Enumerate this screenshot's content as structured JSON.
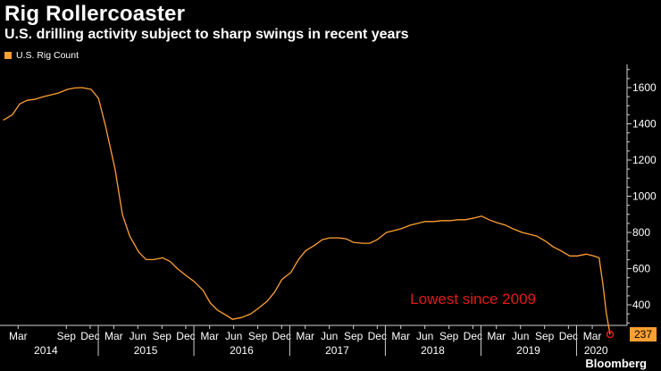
{
  "header": {
    "title": "Rig Rollercoaster",
    "subtitle": "U.S. drilling activity subject to sharp swings in recent years"
  },
  "legend": {
    "label": "U.S. Rig Count",
    "color": "#ffa033"
  },
  "footer": {
    "brand": "Bloomberg"
  },
  "chart_data": {
    "type": "line",
    "title": "Rig Rollercoaster",
    "subtitle": "U.S. drilling activity subject to sharp swings in recent years",
    "xlabel": "",
    "ylabel": "",
    "ylim": [
      200,
      1700
    ],
    "yticks": [
      400,
      600,
      800,
      1000,
      1200,
      1400,
      1600
    ],
    "y_axis_side": "right",
    "grid": "none",
    "legend_position": "top-left",
    "x_tick_labels": [
      "Mar",
      "Sep",
      "Dec",
      "Mar",
      "Jun",
      "Sep",
      "Dec",
      "Mar",
      "Jun",
      "Sep",
      "Dec",
      "Mar",
      "Jun",
      "Sep",
      "Dec",
      "Mar",
      "Jun",
      "Sep",
      "Dec",
      "Mar",
      "Jun",
      "Sep",
      "Dec",
      "Mar"
    ],
    "x_tick_dates": [
      "2014-03-01",
      "2014-09-01",
      "2014-12-01",
      "2015-03-01",
      "2015-06-01",
      "2015-09-01",
      "2015-12-01",
      "2016-03-01",
      "2016-06-01",
      "2016-09-01",
      "2016-12-01",
      "2017-03-01",
      "2017-06-01",
      "2017-09-01",
      "2017-12-01",
      "2018-03-01",
      "2018-06-01",
      "2018-09-01",
      "2018-12-01",
      "2019-03-01",
      "2019-06-01",
      "2019-09-01",
      "2019-12-01",
      "2020-03-01"
    ],
    "year_labels": [
      {
        "label": "2014",
        "date": "2014-06-15"
      },
      {
        "label": "2015",
        "date": "2015-07-01"
      },
      {
        "label": "2016",
        "date": "2016-07-01"
      },
      {
        "label": "2017",
        "date": "2017-07-01"
      },
      {
        "label": "2018",
        "date": "2018-07-01"
      },
      {
        "label": "2019",
        "date": "2019-07-01"
      },
      {
        "label": "2020",
        "date": "2020-03-15"
      }
    ],
    "year_separators": [
      "2015-01-01",
      "2016-01-01",
      "2017-01-01",
      "2018-01-01",
      "2019-01-01",
      "2020-01-01"
    ],
    "x_range": [
      "2014-01-01",
      "2020-05-08"
    ],
    "series": [
      {
        "name": "U.S. Rig Count",
        "color": "#ffa033",
        "x": [
          "2014-01-03",
          "2014-02-07",
          "2014-03-07",
          "2014-04-04",
          "2014-05-02",
          "2014-06-06",
          "2014-07-04",
          "2014-08-01",
          "2014-09-05",
          "2014-10-03",
          "2014-10-31",
          "2014-12-05",
          "2015-01-02",
          "2015-01-30",
          "2015-03-06",
          "2015-04-03",
          "2015-05-01",
          "2015-06-05",
          "2015-07-03",
          "2015-07-31",
          "2015-09-04",
          "2015-10-02",
          "2015-10-30",
          "2015-12-04",
          "2016-01-01",
          "2016-02-05",
          "2016-03-04",
          "2016-04-01",
          "2016-05-06",
          "2016-05-27",
          "2016-07-01",
          "2016-08-05",
          "2016-09-02",
          "2016-10-07",
          "2016-11-04",
          "2016-12-02",
          "2017-01-06",
          "2017-02-03",
          "2017-03-03",
          "2017-04-07",
          "2017-05-05",
          "2017-06-02",
          "2017-07-07",
          "2017-08-04",
          "2017-09-01",
          "2017-10-06",
          "2017-11-03",
          "2017-12-01",
          "2018-01-05",
          "2018-02-02",
          "2018-03-02",
          "2018-04-06",
          "2018-05-04",
          "2018-06-01",
          "2018-07-06",
          "2018-08-03",
          "2018-09-07",
          "2018-10-05",
          "2018-11-02",
          "2018-12-07",
          "2019-01-04",
          "2019-02-01",
          "2019-03-01",
          "2019-04-05",
          "2019-05-03",
          "2019-06-07",
          "2019-07-05",
          "2019-08-02",
          "2019-09-06",
          "2019-10-04",
          "2019-11-01",
          "2019-12-06",
          "2020-01-03",
          "2020-02-07",
          "2020-03-06",
          "2020-03-27",
          "2020-04-10",
          "2020-04-24",
          "2020-05-08"
        ],
        "values": [
          1420,
          1450,
          1510,
          1530,
          1535,
          1550,
          1560,
          1570,
          1590,
          1598,
          1600,
          1590,
          1540,
          1380,
          1150,
          900,
          780,
          690,
          650,
          650,
          660,
          640,
          600,
          560,
          530,
          480,
          410,
          370,
          340,
          320,
          330,
          350,
          380,
          420,
          470,
          540,
          580,
          650,
          700,
          730,
          760,
          770,
          770,
          765,
          745,
          740,
          740,
          760,
          800,
          810,
          820,
          840,
          850,
          860,
          860,
          865,
          865,
          870,
          870,
          880,
          890,
          870,
          855,
          840,
          820,
          800,
          790,
          780,
          750,
          720,
          700,
          670,
          670,
          680,
          670,
          660,
          520,
          350,
          237
        ]
      }
    ],
    "annotations": [
      {
        "text": "Lowest since 2009",
        "date": "2020-05-08",
        "value": 237,
        "color": "#e01a1a"
      }
    ],
    "last_value": {
      "text": "237",
      "value": 237
    }
  }
}
